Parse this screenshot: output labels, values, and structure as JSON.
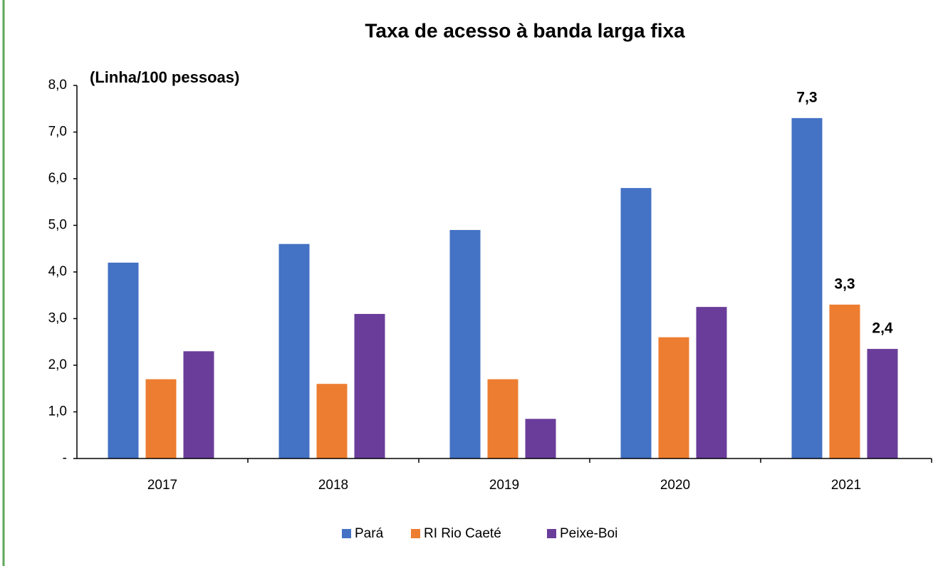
{
  "chart_data": {
    "type": "bar",
    "title": "Taxa de acesso à banda larga fixa",
    "y_label": "(Linha/100 pessoas)",
    "categories": [
      "2017",
      "2018",
      "2019",
      "2020",
      "2021"
    ],
    "series": [
      {
        "name": "Pará",
        "color": "#4472c4",
        "values": [
          4.2,
          4.6,
          4.9,
          5.8,
          7.3
        ],
        "value_labels": [
          null,
          null,
          null,
          null,
          "7,3"
        ]
      },
      {
        "name": "RI Rio Caeté",
        "color": "#ed7d31",
        "values": [
          1.7,
          1.6,
          1.7,
          2.6,
          3.3
        ],
        "value_labels": [
          null,
          null,
          null,
          null,
          "3,3"
        ]
      },
      {
        "name": "Peixe-Boi",
        "color": "#6a3d9a",
        "values": [
          2.3,
          3.1,
          0.85,
          3.25,
          2.35
        ],
        "value_labels": [
          null,
          null,
          null,
          null,
          "2,4"
        ]
      }
    ],
    "ylim": [
      0,
      8
    ],
    "yticks": [
      {
        "value": 0,
        "label": "-"
      },
      {
        "value": 1,
        "label": "1,0"
      },
      {
        "value": 2,
        "label": "2,0"
      },
      {
        "value": 3,
        "label": "3,0"
      },
      {
        "value": 4,
        "label": "4,0"
      },
      {
        "value": 5,
        "label": "5,0"
      },
      {
        "value": 6,
        "label": "6,0"
      },
      {
        "value": 7,
        "label": "7,0"
      },
      {
        "value": 8,
        "label": "8,0"
      }
    ],
    "grid": false,
    "legend": "bottom"
  }
}
